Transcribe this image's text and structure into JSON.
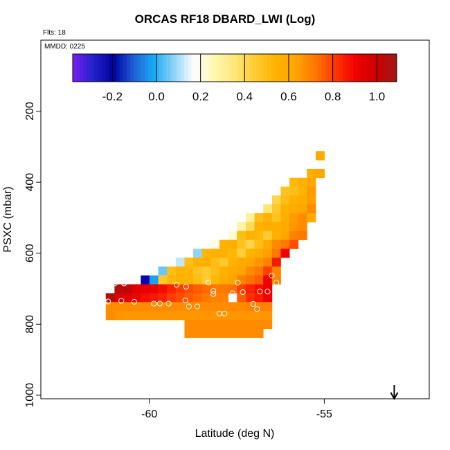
{
  "chart_data": {
    "type": "heatmap",
    "title": "ORCAS RF18 DBARD_LWI (Log)",
    "flights_note": "Flts: 18",
    "date_note": "MMDD: 0225",
    "xlabel": "Latitude (deg N)",
    "ylabel": "PSXC (mbar)",
    "xlim": [
      -63.1,
      -52.0
    ],
    "ylim": [
      1010,
      0
    ],
    "x_ticks": [
      -60,
      -55
    ],
    "x_tick_labels": [
      "-60",
      "-55"
    ],
    "y_ticks": [
      200,
      400,
      600,
      800,
      1000
    ],
    "y_tick_labels": [
      "200",
      "400",
      "600",
      "800",
      "1000"
    ],
    "colorbar": {
      "range": [
        -0.38,
        1.09
      ],
      "ticks": [
        -0.2,
        0.0,
        0.2,
        0.4,
        0.6,
        0.8,
        1.0
      ],
      "tick_labels": [
        "-0.2",
        "0.0",
        "0.2",
        "0.4",
        "0.6",
        "0.8",
        "1.0"
      ],
      "colors": [
        "#7a1ef0",
        "#2222cc",
        "#0000a0",
        "#1f5ed6",
        "#1aa9f5",
        "#8fd4f7",
        "#ffffff",
        "#fff7b0",
        "#fde77a",
        "#ffcc33",
        "#ffb300",
        "#ffa500",
        "#ff7700",
        "#ff3300",
        "#ee0000",
        "#cc0000",
        "#a01818"
      ]
    },
    "cell_size": {
      "dlat": 0.25,
      "dp": 25
    },
    "cells": [
      [
        -55.12,
        325,
        0.6
      ],
      [
        -55.37,
        375,
        0.58
      ],
      [
        -55.12,
        375,
        0.61
      ],
      [
        -55.87,
        400,
        0.52
      ],
      [
        -55.62,
        400,
        0.55
      ],
      [
        -55.37,
        400,
        0.62
      ],
      [
        -56.12,
        425,
        0.48
      ],
      [
        -55.87,
        425,
        0.5
      ],
      [
        -55.62,
        425,
        0.53
      ],
      [
        -55.37,
        425,
        0.65
      ],
      [
        -56.37,
        450,
        0.42
      ],
      [
        -56.12,
        450,
        0.5
      ],
      [
        -55.87,
        450,
        0.55
      ],
      [
        -55.62,
        450,
        0.57
      ],
      [
        -55.37,
        450,
        0.64
      ],
      [
        -56.62,
        475,
        0.36
      ],
      [
        -56.37,
        475,
        0.46
      ],
      [
        -56.12,
        475,
        0.55
      ],
      [
        -55.87,
        475,
        0.6
      ],
      [
        -55.62,
        475,
        0.62
      ],
      [
        -55.37,
        475,
        0.68
      ],
      [
        -57.12,
        500,
        0.3
      ],
      [
        -56.87,
        500,
        0.5
      ],
      [
        -56.62,
        500,
        0.55
      ],
      [
        -56.37,
        500,
        0.48
      ],
      [
        -56.12,
        500,
        0.58
      ],
      [
        -55.87,
        500,
        0.65
      ],
      [
        -55.62,
        500,
        0.68
      ],
      [
        -55.37,
        500,
        0.6
      ],
      [
        -57.37,
        525,
        0.28
      ],
      [
        -57.12,
        525,
        0.4
      ],
      [
        -56.87,
        525,
        0.55
      ],
      [
        -56.62,
        525,
        0.58
      ],
      [
        -56.37,
        525,
        0.57
      ],
      [
        -56.12,
        525,
        0.6
      ],
      [
        -55.87,
        525,
        0.66
      ],
      [
        -55.62,
        525,
        0.68
      ],
      [
        -57.62,
        550,
        0.22
      ],
      [
        -57.37,
        550,
        0.5
      ],
      [
        -57.12,
        550,
        0.56
      ],
      [
        -56.87,
        550,
        0.52
      ],
      [
        -56.62,
        550,
        0.45
      ],
      [
        -56.37,
        550,
        0.56
      ],
      [
        -56.12,
        550,
        0.62
      ],
      [
        -55.87,
        550,
        0.7
      ],
      [
        -55.62,
        550,
        0.72
      ],
      [
        -58.12,
        575,
        0.2
      ],
      [
        -57.87,
        575,
        0.55
      ],
      [
        -57.62,
        575,
        0.58
      ],
      [
        -57.37,
        575,
        0.48
      ],
      [
        -57.12,
        575,
        0.42
      ],
      [
        -56.87,
        575,
        0.5
      ],
      [
        -56.62,
        575,
        0.6
      ],
      [
        -56.37,
        575,
        0.68
      ],
      [
        -56.12,
        575,
        0.72
      ],
      [
        -55.87,
        575,
        0.78
      ],
      [
        -58.62,
        600,
        0.08
      ],
      [
        -58.37,
        600,
        0.52
      ],
      [
        -58.12,
        600,
        0.56
      ],
      [
        -57.87,
        600,
        0.55
      ],
      [
        -57.62,
        600,
        0.52
      ],
      [
        -57.37,
        600,
        0.44
      ],
      [
        -57.12,
        600,
        0.54
      ],
      [
        -56.87,
        600,
        0.58
      ],
      [
        -56.62,
        600,
        0.64
      ],
      [
        -56.37,
        600,
        0.72
      ],
      [
        -56.12,
        600,
        0.9
      ],
      [
        -59.12,
        625,
        0.12
      ],
      [
        -58.87,
        625,
        0.5
      ],
      [
        -58.62,
        625,
        0.55
      ],
      [
        -58.37,
        625,
        0.58
      ],
      [
        -58.12,
        625,
        0.5
      ],
      [
        -57.87,
        625,
        0.46
      ],
      [
        -57.62,
        625,
        0.54
      ],
      [
        -57.37,
        625,
        0.6
      ],
      [
        -57.12,
        625,
        0.62
      ],
      [
        -56.87,
        625,
        0.66
      ],
      [
        -56.62,
        625,
        0.7
      ],
      [
        -56.37,
        625,
        0.86
      ],
      [
        -59.62,
        650,
        0.05
      ],
      [
        -59.37,
        650,
        0.5
      ],
      [
        -59.12,
        650,
        0.54
      ],
      [
        -58.87,
        650,
        0.53
      ],
      [
        -58.62,
        650,
        0.48
      ],
      [
        -58.37,
        650,
        0.45
      ],
      [
        -58.12,
        650,
        0.5
      ],
      [
        -57.87,
        650,
        0.56
      ],
      [
        -57.62,
        650,
        0.6
      ],
      [
        -57.37,
        650,
        0.63
      ],
      [
        -57.12,
        650,
        0.68
      ],
      [
        -56.87,
        650,
        0.72
      ],
      [
        -56.62,
        650,
        0.8
      ],
      [
        -56.37,
        650,
        0.7
      ],
      [
        -60.12,
        675,
        -0.22
      ],
      [
        -59.87,
        675,
        -0.02
      ],
      [
        -59.62,
        675,
        0.46
      ],
      [
        -59.37,
        675,
        0.52
      ],
      [
        -59.12,
        675,
        0.55
      ],
      [
        -58.87,
        675,
        0.54
      ],
      [
        -58.62,
        675,
        0.5
      ],
      [
        -58.37,
        675,
        0.45
      ],
      [
        -58.12,
        675,
        0.52
      ],
      [
        -57.87,
        675,
        0.58
      ],
      [
        -57.62,
        675,
        0.62
      ],
      [
        -57.37,
        675,
        0.7
      ],
      [
        -57.12,
        675,
        0.73
      ],
      [
        -56.87,
        675,
        0.76
      ],
      [
        -56.62,
        675,
        0.9
      ],
      [
        -56.37,
        675,
        0.7
      ],
      [
        -60.87,
        700,
        1.05
      ],
      [
        -60.62,
        700,
        1.03
      ],
      [
        -60.37,
        700,
        0.95
      ],
      [
        -60.12,
        700,
        0.92
      ],
      [
        -59.87,
        700,
        0.9
      ],
      [
        -59.62,
        700,
        0.88
      ],
      [
        -59.37,
        700,
        0.84
      ],
      [
        -59.12,
        700,
        0.8
      ],
      [
        -58.87,
        700,
        0.78
      ],
      [
        -58.62,
        700,
        0.76
      ],
      [
        -58.37,
        700,
        0.74
      ],
      [
        -58.12,
        700,
        0.72
      ],
      [
        -57.87,
        700,
        0.72
      ],
      [
        -57.62,
        700,
        0.73
      ],
      [
        -57.37,
        700,
        0.8
      ],
      [
        -57.12,
        700,
        0.84
      ],
      [
        -56.87,
        700,
        0.88
      ],
      [
        -56.62,
        700,
        0.92
      ],
      [
        -61.12,
        725,
        1.05
      ],
      [
        -60.87,
        725,
        0.96
      ],
      [
        -60.62,
        725,
        0.93
      ],
      [
        -60.37,
        725,
        0.9
      ],
      [
        -60.12,
        725,
        0.88
      ],
      [
        -59.87,
        725,
        0.86
      ],
      [
        -59.62,
        725,
        0.84
      ],
      [
        -59.37,
        725,
        0.8
      ],
      [
        -59.12,
        725,
        0.78
      ],
      [
        -58.87,
        725,
        0.76
      ],
      [
        -58.62,
        725,
        0.74
      ],
      [
        -58.37,
        725,
        0.72
      ],
      [
        -58.12,
        725,
        0.7
      ],
      [
        -57.87,
        725,
        0.7
      ],
      [
        -57.37,
        725,
        0.76
      ],
      [
        -57.12,
        725,
        0.82
      ],
      [
        -56.87,
        725,
        0.86
      ],
      [
        -56.62,
        725,
        0.9
      ],
      [
        -61.12,
        750,
        0.68
      ],
      [
        -60.87,
        750,
        0.68
      ],
      [
        -60.62,
        750,
        0.68
      ],
      [
        -60.37,
        750,
        0.68
      ],
      [
        -60.12,
        750,
        0.68
      ],
      [
        -59.87,
        750,
        0.68
      ],
      [
        -59.62,
        750,
        0.68
      ],
      [
        -59.37,
        750,
        0.68
      ],
      [
        -59.12,
        750,
        0.68
      ],
      [
        -58.87,
        750,
        0.68
      ],
      [
        -58.62,
        750,
        0.68
      ],
      [
        -58.37,
        750,
        0.68
      ],
      [
        -58.12,
        750,
        0.68
      ],
      [
        -57.87,
        750,
        0.68
      ],
      [
        -57.62,
        750,
        0.68
      ],
      [
        -57.37,
        750,
        0.68
      ],
      [
        -57.12,
        750,
        0.7
      ],
      [
        -56.87,
        750,
        0.7
      ],
      [
        -56.62,
        750,
        0.7
      ],
      [
        -61.12,
        775,
        0.68
      ],
      [
        -60.87,
        775,
        0.66
      ],
      [
        -60.62,
        775,
        0.66
      ],
      [
        -60.37,
        775,
        0.66
      ],
      [
        -60.12,
        775,
        0.66
      ],
      [
        -59.87,
        775,
        0.66
      ],
      [
        -59.62,
        775,
        0.66
      ],
      [
        -59.37,
        775,
        0.66
      ],
      [
        -59.12,
        775,
        0.66
      ],
      [
        -58.87,
        775,
        0.66
      ],
      [
        -58.62,
        775,
        0.66
      ],
      [
        -58.37,
        775,
        0.66
      ],
      [
        -58.12,
        775,
        0.66
      ],
      [
        -57.87,
        775,
        0.66
      ],
      [
        -57.62,
        775,
        0.66
      ],
      [
        -57.37,
        775,
        0.66
      ],
      [
        -57.12,
        775,
        0.66
      ],
      [
        -56.87,
        775,
        0.66
      ],
      [
        -56.62,
        775,
        0.66
      ],
      [
        -58.87,
        800,
        0.68
      ],
      [
        -58.62,
        800,
        0.68
      ],
      [
        -58.37,
        800,
        0.68
      ],
      [
        -58.12,
        800,
        0.68
      ],
      [
        -57.87,
        800,
        0.68
      ],
      [
        -57.62,
        800,
        0.68
      ],
      [
        -57.37,
        800,
        0.68
      ],
      [
        -57.12,
        800,
        0.68
      ],
      [
        -56.87,
        800,
        0.68
      ],
      [
        -56.62,
        800,
        0.68
      ],
      [
        -58.87,
        825,
        0.68
      ],
      [
        -58.62,
        825,
        0.68
      ],
      [
        -58.37,
        825,
        0.68
      ],
      [
        -58.12,
        825,
        0.68
      ],
      [
        -57.87,
        825,
        0.68
      ],
      [
        -57.62,
        825,
        0.68
      ],
      [
        -57.37,
        825,
        0.68
      ],
      [
        -57.12,
        825,
        0.68
      ],
      [
        -56.87,
        825,
        0.68
      ]
    ],
    "circles": [
      [
        -60.99,
        685
      ],
      [
        -60.72,
        685
      ],
      [
        -59.22,
        689
      ],
      [
        -58.95,
        694
      ],
      [
        -58.31,
        683
      ],
      [
        -57.47,
        683
      ],
      [
        -56.37,
        683
      ],
      [
        -56.5,
        663
      ],
      [
        -56.62,
        708
      ],
      [
        -56.84,
        708
      ],
      [
        -57.33,
        710
      ],
      [
        -57.62,
        713
      ],
      [
        -58.17,
        706
      ],
      [
        -58.17,
        715
      ],
      [
        -60.8,
        734
      ],
      [
        -61.18,
        736
      ],
      [
        -61.28,
        737
      ],
      [
        -60.43,
        737
      ],
      [
        -59.87,
        742
      ],
      [
        -59.7,
        742
      ],
      [
        -59.45,
        742
      ],
      [
        -58.97,
        733
      ],
      [
        -58.87,
        750
      ],
      [
        -58.63,
        750
      ],
      [
        -58.0,
        770
      ],
      [
        -57.85,
        770
      ],
      [
        -57.03,
        743
      ],
      [
        -56.92,
        757
      ]
    ],
    "arrow_lat": -53.0
  }
}
